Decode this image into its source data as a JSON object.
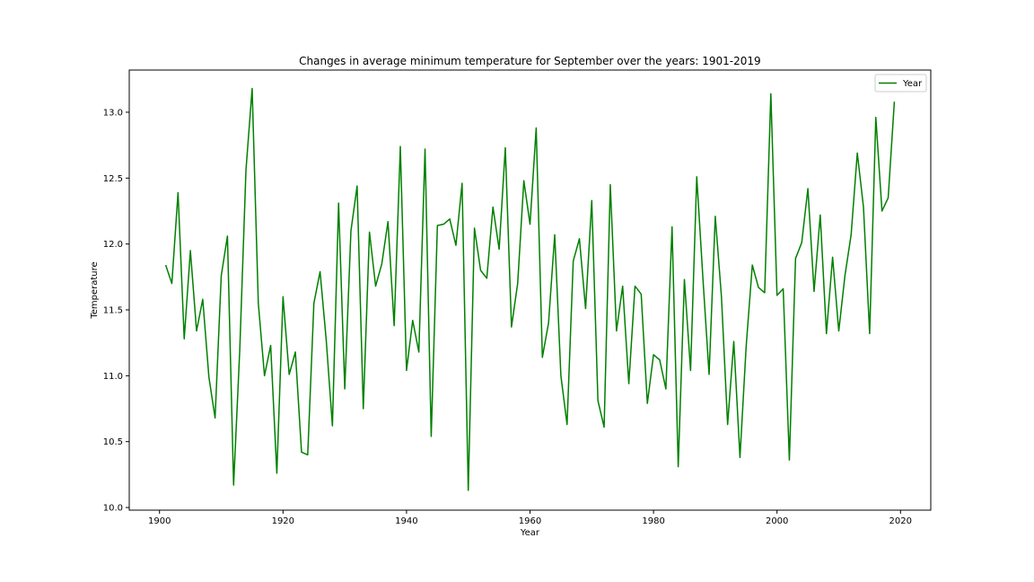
{
  "chart_data": {
    "type": "line",
    "title": "Changes in average minimum temperature for September over the years: 1901-2019",
    "xlabel": "Year",
    "ylabel": "Temperature",
    "xlim": [
      1895.1,
      2024.9
    ],
    "ylim": [
      9.98,
      13.32
    ],
    "xticks": [
      1900,
      1920,
      1940,
      1960,
      1980,
      2000,
      2020
    ],
    "yticks": [
      10.0,
      10.5,
      11.0,
      11.5,
      12.0,
      12.5,
      13.0
    ],
    "grid": false,
    "legend_position": "top-right",
    "series": [
      {
        "name": "Year",
        "color": "#008000",
        "x": [
          1901,
          1902,
          1903,
          1904,
          1905,
          1906,
          1907,
          1908,
          1909,
          1910,
          1911,
          1912,
          1913,
          1914,
          1915,
          1916,
          1917,
          1918,
          1919,
          1920,
          1921,
          1922,
          1923,
          1924,
          1925,
          1926,
          1927,
          1928,
          1929,
          1930,
          1931,
          1932,
          1933,
          1934,
          1935,
          1936,
          1937,
          1938,
          1939,
          1940,
          1941,
          1942,
          1943,
          1944,
          1945,
          1946,
          1947,
          1948,
          1949,
          1950,
          1951,
          1952,
          1953,
          1954,
          1955,
          1956,
          1957,
          1958,
          1959,
          1960,
          1961,
          1962,
          1963,
          1964,
          1965,
          1966,
          1967,
          1968,
          1969,
          1970,
          1971,
          1972,
          1973,
          1974,
          1975,
          1976,
          1977,
          1978,
          1979,
          1980,
          1981,
          1982,
          1983,
          1984,
          1985,
          1986,
          1987,
          1988,
          1989,
          1990,
          1991,
          1992,
          1993,
          1994,
          1995,
          1996,
          1997,
          1998,
          1999,
          2000,
          2001,
          2002,
          2003,
          2004,
          2005,
          2006,
          2007,
          2008,
          2009,
          2010,
          2011,
          2012,
          2013,
          2014,
          2015,
          2016,
          2017,
          2018,
          2019
        ],
        "values": [
          11.84,
          11.7,
          12.39,
          11.28,
          11.95,
          11.34,
          11.58,
          10.99,
          10.68,
          11.76,
          12.06,
          10.17,
          11.2,
          12.56,
          13.18,
          11.55,
          11.0,
          11.23,
          10.26,
          11.6,
          11.01,
          11.18,
          10.42,
          10.4,
          11.55,
          11.79,
          11.27,
          10.62,
          12.31,
          10.9,
          12.1,
          12.44,
          10.75,
          12.09,
          11.68,
          11.85,
          12.17,
          11.38,
          12.74,
          11.04,
          11.42,
          11.18,
          12.72,
          10.54,
          12.14,
          12.15,
          12.19,
          11.99,
          12.46,
          10.13,
          12.12,
          11.8,
          11.74,
          12.28,
          11.96,
          12.73,
          11.37,
          11.7,
          12.48,
          12.15,
          12.88,
          11.14,
          11.4,
          12.07,
          11.0,
          10.63,
          11.87,
          12.04,
          11.51,
          12.33,
          10.81,
          10.61,
          12.45,
          11.34,
          11.68,
          10.94,
          11.68,
          11.62,
          10.79,
          11.16,
          11.12,
          10.9,
          12.13,
          10.31,
          11.73,
          11.04,
          12.51,
          11.74,
          11.01,
          12.21,
          11.6,
          10.63,
          11.26,
          10.38,
          11.22,
          11.84,
          11.67,
          11.63,
          13.14,
          11.61,
          11.66,
          10.36,
          11.89,
          12.01,
          12.42,
          11.64,
          12.22,
          11.32,
          11.9,
          11.34,
          11.76,
          12.07,
          12.69,
          12.28,
          11.32,
          12.96,
          12.25,
          12.35,
          13.08
        ]
      }
    ]
  }
}
